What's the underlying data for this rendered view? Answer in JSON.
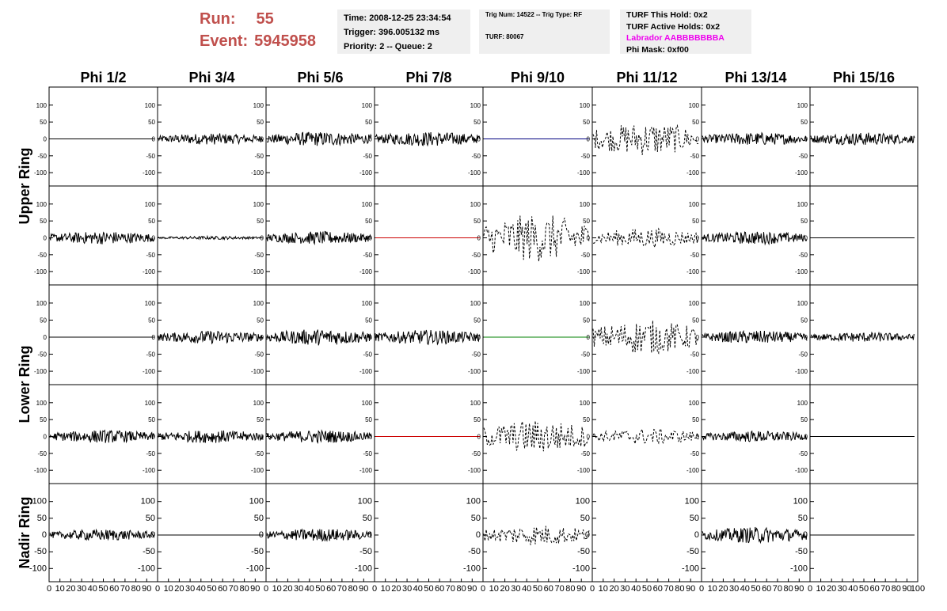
{
  "header": {
    "run_label": "Run:",
    "run_value": "55",
    "event_label": "Event:",
    "event_value": "5945958",
    "time_line": "Time: 2008-12-25 23:34:54",
    "trigger_line": "Trigger: 396.005132 ms",
    "priority_line": "Priority: 2 -- Queue: 2",
    "trig_line": "Trig Num: 14522 -- Trig Type: RF",
    "turf_line": "TURF: 80067",
    "turf_hold_line": "TURF This Hold: 0x2",
    "turf_active_line": "TURF Active Holds: 0x2",
    "labrador_line": "Labrador AABBBBBBBA",
    "phi_mask_line": "Phi Mask: 0xf00",
    "labrador_color": "#ee00ee",
    "run_color": "#c0504d"
  },
  "chart_data": {
    "type": "line",
    "columns": [
      "Phi 1/2",
      "Phi 3/4",
      "Phi 5/6",
      "Phi 7/8",
      "Phi 9/10",
      "Phi 11/12",
      "Phi 13/14",
      "Phi 15/16"
    ],
    "rows": [
      "Upper Ring",
      "Upper Ring",
      "Lower Ring",
      "Lower Ring",
      "Nadir Ring"
    ],
    "row_labels": [
      "Upper Ring",
      "Lower Ring",
      "Nadir Ring"
    ],
    "x_range": [
      0,
      100
    ],
    "x_ticks": [
      0,
      10,
      20,
      30,
      40,
      50,
      60,
      70,
      80,
      90,
      100
    ],
    "y_range": [
      -130,
      130
    ],
    "y_ticks": [
      100,
      50,
      0,
      -50,
      -100
    ],
    "grid": false,
    "cells": [
      [
        {
          "style": "flat",
          "color": "#000000",
          "amp": 0
        },
        {
          "style": "noise",
          "color": "#000000",
          "amp": 14
        },
        {
          "style": "noise",
          "color": "#000000",
          "amp": 18
        },
        {
          "style": "noise",
          "color": "#000000",
          "amp": 18
        },
        {
          "style": "flat",
          "color": "#000080",
          "amp": 0
        },
        {
          "style": "dashed",
          "color": "#000000",
          "amp": 42
        },
        {
          "style": "noise",
          "color": "#000000",
          "amp": 16
        },
        {
          "style": "noise",
          "color": "#000000",
          "amp": 16
        }
      ],
      [
        {
          "style": "noise",
          "color": "#000000",
          "amp": 16
        },
        {
          "style": "noise",
          "color": "#000000",
          "amp": 4
        },
        {
          "style": "noise",
          "color": "#000000",
          "amp": 16
        },
        {
          "style": "flat",
          "color": "#cc0000",
          "amp": 0
        },
        {
          "style": "dashed",
          "color": "#000000",
          "amp": 60
        },
        {
          "style": "dashed",
          "color": "#000000",
          "amp": 24
        },
        {
          "style": "noise",
          "color": "#000000",
          "amp": 16
        },
        {
          "style": "flat",
          "color": "#000000",
          "amp": 0
        }
      ],
      [
        {
          "style": "flat",
          "color": "#000000",
          "amp": 0
        },
        {
          "style": "noise",
          "color": "#000000",
          "amp": 16
        },
        {
          "style": "noise",
          "color": "#000000",
          "amp": 20
        },
        {
          "style": "noise",
          "color": "#000000",
          "amp": 18
        },
        {
          "style": "flat",
          "color": "#008000",
          "amp": 0
        },
        {
          "style": "dashed",
          "color": "#000000",
          "amp": 42
        },
        {
          "style": "noise",
          "color": "#000000",
          "amp": 16
        },
        {
          "style": "noise",
          "color": "#000000",
          "amp": 12
        }
      ],
      [
        {
          "style": "noise",
          "color": "#000000",
          "amp": 16
        },
        {
          "style": "noise",
          "color": "#000000",
          "amp": 16
        },
        {
          "style": "noise",
          "color": "#000000",
          "amp": 16
        },
        {
          "style": "flat",
          "color": "#cc0000",
          "amp": 0
        },
        {
          "style": "dashed",
          "color": "#000000",
          "amp": 42
        },
        {
          "style": "dashed",
          "color": "#000000",
          "amp": 20
        },
        {
          "style": "noise",
          "color": "#000000",
          "amp": 14
        },
        {
          "style": "flat",
          "color": "#000000",
          "amp": 0
        }
      ],
      [
        {
          "style": "noise",
          "color": "#000000",
          "amp": 14
        },
        {
          "style": "flat",
          "color": "#000000",
          "amp": 0
        },
        {
          "style": "noise",
          "color": "#000000",
          "amp": 16
        },
        {
          "style": "empty",
          "color": "#000000",
          "amp": 0
        },
        {
          "style": "dashed",
          "color": "#000000",
          "amp": 26
        },
        {
          "style": "empty",
          "color": "#000000",
          "amp": 0
        },
        {
          "style": "noise",
          "color": "#000000",
          "amp": 20
        },
        {
          "style": "flat",
          "color": "#000000",
          "amp": 0
        }
      ]
    ]
  }
}
